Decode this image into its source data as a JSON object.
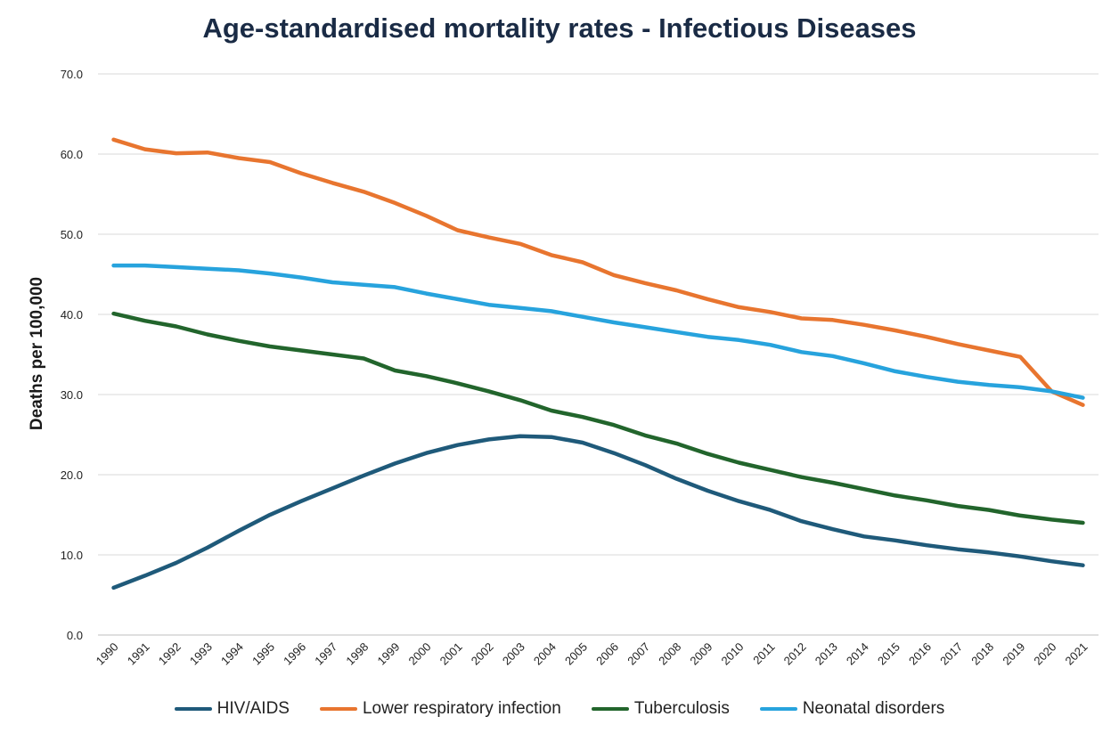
{
  "chart_data": {
    "type": "line",
    "title": "Age-standardised mortality rates - Infectious Diseases",
    "xlabel": "",
    "ylabel": "Deaths per 100,000",
    "ylim": [
      0,
      70
    ],
    "yticks": [
      "0.0",
      "10.0",
      "20.0",
      "30.0",
      "40.0",
      "50.0",
      "60.0",
      "70.0"
    ],
    "grid": true,
    "legend_position": "bottom",
    "x": [
      "1990",
      "1991",
      "1992",
      "1993",
      "1994",
      "1995",
      "1996",
      "1997",
      "1998",
      "1999",
      "2000",
      "2001",
      "2002",
      "2003",
      "2004",
      "2005",
      "2006",
      "2007",
      "2008",
      "2009",
      "2010",
      "2011",
      "2012",
      "2013",
      "2014",
      "2015",
      "2016",
      "2017",
      "2018",
      "2019",
      "2020",
      "2021"
    ],
    "series": [
      {
        "name": "HIV/AIDS",
        "color": "#1f5a7a",
        "values": [
          5.9,
          7.4,
          9.0,
          10.9,
          13.0,
          15.0,
          16.7,
          18.3,
          19.9,
          21.4,
          22.7,
          23.7,
          24.4,
          24.8,
          24.7,
          24.0,
          22.7,
          21.2,
          19.5,
          18.0,
          16.7,
          15.6,
          14.2,
          13.2,
          12.3,
          11.8,
          11.2,
          10.7,
          10.3,
          9.8,
          9.2,
          8.7
        ]
      },
      {
        "name": "Lower respiratory infection",
        "color": "#e8752f",
        "values": [
          61.8,
          60.6,
          60.1,
          60.2,
          59.5,
          59.0,
          57.6,
          56.4,
          55.3,
          53.9,
          52.3,
          50.5,
          49.6,
          48.8,
          47.4,
          46.5,
          44.9,
          43.9,
          43.0,
          41.9,
          40.9,
          40.3,
          39.5,
          39.3,
          38.7,
          38.0,
          37.2,
          36.3,
          35.5,
          34.7,
          30.4,
          28.7
        ]
      },
      {
        "name": "Tuberculosis",
        "color": "#22652c",
        "values": [
          40.1,
          39.2,
          38.5,
          37.5,
          36.7,
          36.0,
          35.5,
          35.0,
          34.5,
          33.0,
          32.3,
          31.4,
          30.4,
          29.3,
          28.0,
          27.2,
          26.2,
          24.9,
          23.9,
          22.6,
          21.5,
          20.6,
          19.7,
          19.0,
          18.2,
          17.4,
          16.8,
          16.1,
          15.6,
          14.9,
          14.4,
          14.0
        ]
      },
      {
        "name": "Neonatal disorders",
        "color": "#27a3dd",
        "values": [
          46.1,
          46.1,
          45.9,
          45.7,
          45.5,
          45.1,
          44.6,
          44.0,
          43.7,
          43.4,
          42.6,
          41.9,
          41.2,
          40.8,
          40.4,
          39.7,
          39.0,
          38.4,
          37.8,
          37.2,
          36.8,
          36.2,
          35.3,
          34.8,
          33.9,
          32.9,
          32.2,
          31.6,
          31.2,
          30.9,
          30.4,
          29.6
        ]
      }
    ]
  }
}
